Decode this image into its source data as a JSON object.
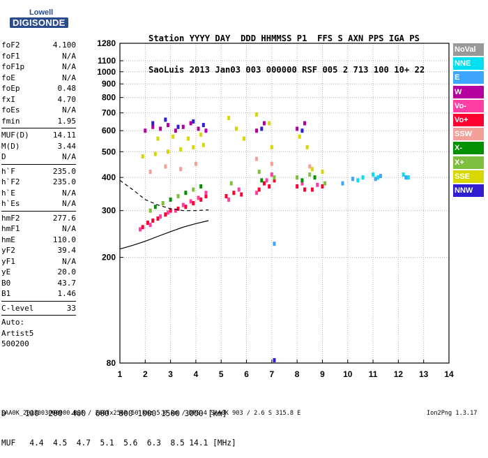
{
  "logo": {
    "line1": "Lowell",
    "line2": "DIGISONDE"
  },
  "header": {
    "line1": "Station YYYY DAY  DDD HHMMSS P1  FFS S AXN PPS IGA PS",
    "line2": "SaoLuis 2013 Jan03 003 000000 RSF 005 2 713 100 10+ 22"
  },
  "params": [
    {
      "name": "foF2",
      "value": "4.100"
    },
    {
      "name": "foF1",
      "value": "N/A"
    },
    {
      "name": "foF1p",
      "value": "N/A"
    },
    {
      "name": "foE",
      "value": "N/A"
    },
    {
      "name": "foEp",
      "value": "0.48"
    },
    {
      "name": "fxI",
      "value": "4.70"
    },
    {
      "name": "foEs",
      "value": "N/A"
    },
    {
      "name": "fmin",
      "value": "1.95"
    },
    {
      "sep": true
    },
    {
      "name": "MUF(D)",
      "value": "14.11"
    },
    {
      "name": "M(D)",
      "value": "3.44"
    },
    {
      "name": "D",
      "value": "N/A"
    },
    {
      "sep": true
    },
    {
      "name": "h`F",
      "value": "235.0"
    },
    {
      "name": "h`F2",
      "value": "235.0"
    },
    {
      "name": "h`E",
      "value": "N/A"
    },
    {
      "name": "h`Es",
      "value": "N/A"
    },
    {
      "sep": true
    },
    {
      "name": "hmF2",
      "value": "277.6"
    },
    {
      "name": "hmF1",
      "value": "N/A"
    },
    {
      "name": "hmE",
      "value": "110.0"
    },
    {
      "name": "yF2",
      "value": "39.4"
    },
    {
      "name": "yF1",
      "value": "N/A"
    },
    {
      "name": "yE",
      "value": "20.0"
    },
    {
      "name": "B0",
      "value": "43.7"
    },
    {
      "name": "B1",
      "value": "1.46"
    },
    {
      "sep": true
    },
    {
      "name": "C-level",
      "value": "33"
    },
    {
      "sep": true
    },
    {
      "name": "Auto:",
      "value": ""
    },
    {
      "name": "Artist5",
      "value": ""
    },
    {
      "name": "500200",
      "value": ""
    }
  ],
  "bottom_table": {
    "line1": "D    100  200  400  600  800 1000 1500 3000 [km]",
    "line2": "MUF   4.4  4.5  4.7  5.1  5.6  6.3  8.5 14.1 [MHz]"
  },
  "footer": {
    "left": "SAA0K_2013003000000.RSF / 260fx256h 50 kHz 5.0 km / DPS-4 SAA0K 903 / 2.6 S 315.8 E",
    "right": "Ion2Png 1.3.17"
  },
  "legend": [
    {
      "label": "NoVal",
      "color": "#999999"
    },
    {
      "label": "NNE",
      "color": "#00e0f0"
    },
    {
      "label": "E",
      "color": "#3fa6ff"
    },
    {
      "label": "W",
      "color": "#b3009f"
    },
    {
      "label": "Vo-",
      "color": "#ff3fa3"
    },
    {
      "label": "Vo+",
      "color": "#ff0030"
    },
    {
      "label": "SSW",
      "color": "#f3a09a"
    },
    {
      "label": "X-",
      "color": "#009000"
    },
    {
      "label": "X+",
      "color": "#7fbf3f"
    },
    {
      "label": "SSE",
      "color": "#d8d800"
    },
    {
      "label": "NNW",
      "color": "#2f1fd0"
    }
  ],
  "chart_data": {
    "type": "scatter",
    "title": "",
    "xlabel": "",
    "ylabel": "",
    "xlim": [
      1,
      14
    ],
    "ylim": [
      80,
      1280
    ],
    "yscale": "log",
    "xticks": [
      1,
      2,
      3,
      4,
      5,
      6,
      7,
      8,
      9,
      10,
      11,
      12,
      13,
      14
    ],
    "yticks": [
      80,
      200,
      300,
      400,
      500,
      600,
      700,
      800,
      900,
      1000,
      1100,
      1280
    ],
    "grid": true,
    "series": [
      {
        "name": "Vo+",
        "color": "#ff0030",
        "points": [
          [
            1.9,
            260
          ],
          [
            2.1,
            270
          ],
          [
            2.3,
            275
          ],
          [
            2.5,
            280
          ],
          [
            2.8,
            290
          ],
          [
            3.0,
            300
          ],
          [
            3.3,
            305
          ],
          [
            3.6,
            310
          ],
          [
            3.9,
            320
          ],
          [
            4.2,
            330
          ],
          [
            4.4,
            340
          ],
          [
            5.2,
            340
          ],
          [
            5.5,
            350
          ],
          [
            5.8,
            345
          ],
          [
            6.5,
            360
          ],
          [
            6.7,
            380
          ],
          [
            6.9,
            370
          ],
          [
            7.1,
            390
          ],
          [
            8.0,
            370
          ],
          [
            8.3,
            360
          ],
          [
            8.6,
            360
          ],
          [
            9.0,
            370
          ]
        ]
      },
      {
        "name": "Vo-",
        "color": "#ff3fa3",
        "points": [
          [
            1.8,
            255
          ],
          [
            2.2,
            265
          ],
          [
            2.6,
            285
          ],
          [
            2.9,
            295
          ],
          [
            3.2,
            300
          ],
          [
            3.5,
            315
          ],
          [
            3.8,
            325
          ],
          [
            4.1,
            335
          ],
          [
            4.4,
            350
          ],
          [
            5.3,
            330
          ],
          [
            5.7,
            360
          ],
          [
            6.4,
            350
          ],
          [
            6.8,
            390
          ],
          [
            7.0,
            410
          ],
          [
            8.2,
            380
          ],
          [
            8.8,
            375
          ]
        ]
      },
      {
        "name": "W",
        "color": "#b3009f",
        "points": [
          [
            2.0,
            600
          ],
          [
            2.3,
            620
          ],
          [
            2.6,
            610
          ],
          [
            2.9,
            630
          ],
          [
            3.2,
            600
          ],
          [
            3.5,
            620
          ],
          [
            3.8,
            640
          ],
          [
            4.1,
            610
          ],
          [
            4.4,
            600
          ],
          [
            6.4,
            600
          ],
          [
            6.7,
            640
          ],
          [
            8.0,
            610
          ],
          [
            8.3,
            640
          ]
        ]
      },
      {
        "name": "SSE",
        "color": "#d8d800",
        "points": [
          [
            1.9,
            480
          ],
          [
            2.4,
            490
          ],
          [
            2.9,
            500
          ],
          [
            3.4,
            510
          ],
          [
            3.9,
            520
          ],
          [
            4.3,
            530
          ],
          [
            2.5,
            560
          ],
          [
            3.1,
            570
          ],
          [
            3.7,
            560
          ],
          [
            4.2,
            580
          ],
          [
            5.3,
            670
          ],
          [
            5.6,
            610
          ],
          [
            5.9,
            560
          ],
          [
            6.4,
            690
          ],
          [
            6.9,
            640
          ],
          [
            7.0,
            520
          ],
          [
            8.1,
            570
          ],
          [
            8.4,
            520
          ],
          [
            8.6,
            430
          ],
          [
            9.0,
            420
          ]
        ]
      },
      {
        "name": "X+",
        "color": "#7fbf3f",
        "points": [
          [
            2.2,
            300
          ],
          [
            2.7,
            320
          ],
          [
            3.3,
            340
          ],
          [
            3.9,
            360
          ],
          [
            5.4,
            380
          ],
          [
            6.5,
            420
          ],
          [
            7.1,
            400
          ],
          [
            8.0,
            400
          ],
          [
            8.5,
            410
          ],
          [
            9.1,
            380
          ]
        ]
      },
      {
        "name": "X-",
        "color": "#009000",
        "points": [
          [
            2.4,
            310
          ],
          [
            3.0,
            330
          ],
          [
            3.6,
            350
          ],
          [
            4.2,
            370
          ],
          [
            6.6,
            390
          ],
          [
            8.2,
            390
          ],
          [
            8.7,
            400
          ]
        ]
      },
      {
        "name": "NNE",
        "color": "#00e0f0",
        "points": [
          [
            10.4,
            390
          ],
          [
            10.6,
            400
          ],
          [
            11.0,
            410
          ],
          [
            11.2,
            400
          ],
          [
            12.2,
            410
          ],
          [
            12.4,
            400
          ]
        ]
      },
      {
        "name": "E",
        "color": "#3fa6ff",
        "points": [
          [
            9.8,
            380
          ],
          [
            10.2,
            395
          ],
          [
            11.1,
            395
          ],
          [
            11.3,
            405
          ],
          [
            12.3,
            400
          ],
          [
            7.1,
            225
          ]
        ]
      },
      {
        "name": "NNW",
        "color": "#2f1fd0",
        "points": [
          [
            2.3,
            640
          ],
          [
            2.8,
            660
          ],
          [
            3.3,
            620
          ],
          [
            3.9,
            650
          ],
          [
            4.3,
            630
          ],
          [
            6.6,
            610
          ],
          [
            8.2,
            600
          ],
          [
            7.1,
            82
          ]
        ]
      },
      {
        "name": "SSW",
        "color": "#f3a09a",
        "points": [
          [
            2.2,
            420
          ],
          [
            2.8,
            440
          ],
          [
            3.4,
            430
          ],
          [
            4.0,
            450
          ],
          [
            6.4,
            470
          ],
          [
            7.0,
            450
          ],
          [
            8.5,
            440
          ]
        ]
      }
    ],
    "lines": [
      {
        "name": "dashed",
        "style": "dashed",
        "points": [
          [
            1.0,
            390
          ],
          [
            1.5,
            360
          ],
          [
            2.0,
            330
          ],
          [
            2.5,
            315
          ],
          [
            3.0,
            305
          ],
          [
            3.5,
            300
          ],
          [
            4.0,
            300
          ],
          [
            4.5,
            302
          ]
        ]
      },
      {
        "name": "solid",
        "style": "solid",
        "points": [
          [
            1.0,
            215
          ],
          [
            1.5,
            222
          ],
          [
            2.0,
            230
          ],
          [
            2.5,
            240
          ],
          [
            3.0,
            250
          ],
          [
            3.5,
            260
          ],
          [
            4.0,
            268
          ],
          [
            4.5,
            275
          ]
        ]
      }
    ]
  }
}
